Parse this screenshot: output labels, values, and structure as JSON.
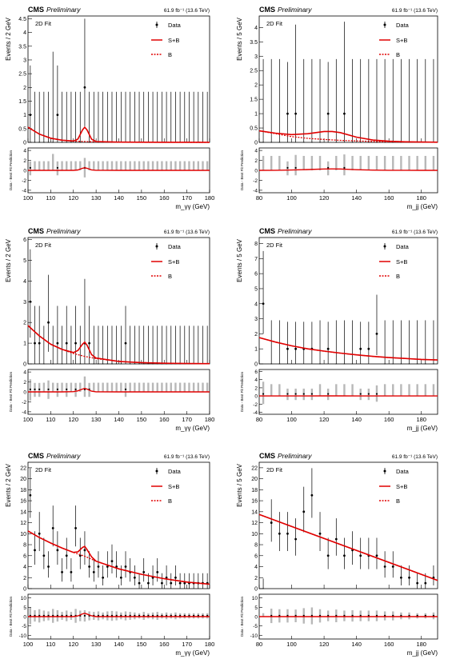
{
  "figure": {
    "lumi_label": "61.9 fb⁻¹ (13.6 TeV)"
  },
  "chart_data": [
    {
      "type": "scatter",
      "header": {
        "experiment": "CMS",
        "status": "Preliminary"
      },
      "fit_label": "2D Fit",
      "legend": [
        "Data",
        "S+B",
        "B"
      ],
      "legend_position": "top-right",
      "xlabel": "m_γγ (GeV)",
      "ylabel": "Events / 2 GeV",
      "ratio_ylabel": "Data - Best Fit Prediction",
      "xlim": [
        100,
        180
      ],
      "ylim": [
        0,
        4.6
      ],
      "yticks": [
        0,
        0.5,
        1,
        1.5,
        2,
        2.5,
        3,
        3.5,
        4,
        4.5
      ],
      "xticks": [
        100,
        110,
        120,
        130,
        140,
        150,
        160,
        170,
        180
      ],
      "ratio_ylim": [
        -4.5,
        4.5
      ],
      "ratio_yticks": [
        -4,
        -2,
        0,
        2,
        4
      ],
      "data_points": [
        {
          "x": 101,
          "y": 1
        },
        {
          "x": 113,
          "y": 1
        },
        {
          "x": 125,
          "y": 2
        }
      ],
      "empty_bin_upper_error": 1.84,
      "extra_error_bars": [
        {
          "x": 111,
          "hi": 3.3
        },
        {
          "x": 125,
          "hi": 4.5
        }
      ],
      "sb_curve": {
        "x": [
          100,
          105,
          110,
          115,
          120,
          122,
          124,
          125,
          126,
          128,
          130,
          140,
          150,
          160,
          170,
          180
        ],
        "y": [
          0.55,
          0.3,
          0.15,
          0.08,
          0.05,
          0.12,
          0.45,
          0.55,
          0.45,
          0.12,
          0.03,
          0.01,
          0.005,
          0.003,
          0.002,
          0.001
        ]
      },
      "b_curve": {
        "x": [
          100,
          105,
          110,
          115,
          120,
          125,
          130,
          140,
          150,
          160,
          170,
          180
        ],
        "y": [
          0.55,
          0.3,
          0.15,
          0.08,
          0.05,
          0.03,
          0.02,
          0.01,
          0.005,
          0.003,
          0.002,
          0.001
        ]
      }
    },
    {
      "type": "scatter",
      "header": {
        "experiment": "CMS",
        "status": "Preliminary"
      },
      "fit_label": "2D Fit",
      "legend": [
        "Data",
        "S+B",
        "B"
      ],
      "legend_position": "top-right",
      "xlabel": "m_jj (GeV)",
      "ylabel": "Events / 5 GeV",
      "ratio_ylabel": "Data - Best Fit Prediction",
      "xlim": [
        80,
        190
      ],
      "ylim": [
        0,
        4.4
      ],
      "yticks": [
        0,
        0.5,
        1,
        1.5,
        2,
        2.5,
        3,
        3.5,
        4
      ],
      "xticks": [
        80,
        100,
        120,
        140,
        160,
        180
      ],
      "ratio_ylim": [
        -4.5,
        4.5
      ],
      "ratio_yticks": [
        -4,
        -2,
        0,
        2,
        4
      ],
      "data_points": [
        {
          "x": 97.5,
          "y": 1
        },
        {
          "x": 102.5,
          "y": 1
        },
        {
          "x": 122.5,
          "y": 1
        },
        {
          "x": 132.5,
          "y": 1
        }
      ],
      "empty_bin_upper_error": 2.9,
      "extra_error_bars": [
        {
          "x": 102.5,
          "hi": 4.1
        },
        {
          "x": 132.5,
          "hi": 4.2
        }
      ],
      "sb_curve": {
        "x": [
          80,
          90,
          100,
          110,
          120,
          125,
          130,
          140,
          150,
          160,
          170,
          180,
          190
        ],
        "y": [
          0.4,
          0.32,
          0.27,
          0.3,
          0.38,
          0.38,
          0.34,
          0.18,
          0.08,
          0.04,
          0.02,
          0.01,
          0.005
        ]
      },
      "b_curve": {
        "x": [
          80,
          90,
          100,
          110,
          120,
          130,
          140,
          150,
          160,
          170,
          180,
          190
        ],
        "y": [
          0.4,
          0.3,
          0.2,
          0.14,
          0.1,
          0.07,
          0.05,
          0.03,
          0.02,
          0.01,
          0.008,
          0.005
        ]
      }
    },
    {
      "type": "scatter",
      "header": {
        "experiment": "CMS",
        "status": "Preliminary"
      },
      "fit_label": "2D Fit",
      "legend": [
        "Data",
        "S+B",
        "B"
      ],
      "legend_position": "top-right",
      "xlabel": "m_γγ (GeV)",
      "ylabel": "Events / 2 GeV",
      "ratio_ylabel": "Data - Best Fit Prediction",
      "xlim": [
        100,
        180
      ],
      "ylim": [
        0,
        6.1
      ],
      "yticks": [
        0,
        1,
        2,
        3,
        4,
        5,
        6
      ],
      "xticks": [
        100,
        110,
        120,
        130,
        140,
        150,
        160,
        170,
        180
      ],
      "ratio_ylim": [
        -4.5,
        4.5
      ],
      "ratio_yticks": [
        -4,
        -2,
        0,
        2,
        4
      ],
      "data_points": [
        {
          "x": 101,
          "y": 3
        },
        {
          "x": 103,
          "y": 1
        },
        {
          "x": 105,
          "y": 1
        },
        {
          "x": 109,
          "y": 2
        },
        {
          "x": 113,
          "y": 1
        },
        {
          "x": 117,
          "y": 1
        },
        {
          "x": 121,
          "y": 1
        },
        {
          "x": 125,
          "y": 1
        },
        {
          "x": 127,
          "y": 1
        },
        {
          "x": 143,
          "y": 1
        }
      ],
      "empty_bin_upper_error": 1.84,
      "extra_error_bars": [
        {
          "x": 101,
          "hi": 5.5
        },
        {
          "x": 109,
          "hi": 4.3
        },
        {
          "x": 125,
          "hi": 4.1
        }
      ],
      "sb_curve": {
        "x": [
          100,
          105,
          110,
          115,
          120,
          122,
          124,
          125,
          126,
          128,
          130,
          140,
          150,
          160,
          170,
          180
        ],
        "y": [
          1.85,
          1.35,
          0.95,
          0.7,
          0.55,
          0.65,
          0.95,
          1.05,
          0.9,
          0.45,
          0.28,
          0.12,
          0.06,
          0.03,
          0.02,
          0.01
        ]
      },
      "b_curve": {
        "x": [
          100,
          105,
          110,
          115,
          120,
          125,
          130,
          140,
          150,
          160,
          170,
          180
        ],
        "y": [
          1.85,
          1.35,
          0.95,
          0.7,
          0.5,
          0.36,
          0.26,
          0.12,
          0.06,
          0.03,
          0.02,
          0.01
        ]
      }
    },
    {
      "type": "scatter",
      "header": {
        "experiment": "CMS",
        "status": "Preliminary"
      },
      "fit_label": "2D Fit",
      "legend": [
        "Data",
        "S+B",
        "B"
      ],
      "legend_position": "top-right",
      "xlabel": "m_jj (GeV)",
      "ylabel": "Events / 5 GeV",
      "ratio_ylabel": "Data - Best Fit Prediction",
      "xlim": [
        80,
        190
      ],
      "ylim": [
        0,
        8.4
      ],
      "yticks": [
        0,
        1,
        2,
        3,
        4,
        5,
        6,
        7,
        8
      ],
      "xticks": [
        80,
        100,
        120,
        140,
        160,
        180
      ],
      "ratio_ylim": [
        -4.5,
        6.5
      ],
      "ratio_yticks": [
        -4,
        -2,
        0,
        2,
        4,
        6
      ],
      "data_points": [
        {
          "x": 82.5,
          "y": 4
        },
        {
          "x": 97.5,
          "y": 1
        },
        {
          "x": 102.5,
          "y": 1
        },
        {
          "x": 107.5,
          "y": 1
        },
        {
          "x": 112.5,
          "y": 1
        },
        {
          "x": 122.5,
          "y": 1
        },
        {
          "x": 142.5,
          "y": 1
        },
        {
          "x": 147.5,
          "y": 1
        },
        {
          "x": 152.5,
          "y": 2
        }
      ],
      "empty_bin_upper_error": 2.9,
      "extra_error_bars": [
        {
          "x": 82.5,
          "hi": 7.5
        },
        {
          "x": 152.5,
          "hi": 4.6
        }
      ],
      "sb_curve": {
        "x": [
          80,
          90,
          100,
          110,
          120,
          130,
          140,
          150,
          160,
          170,
          180,
          190
        ],
        "y": [
          1.75,
          1.45,
          1.2,
          1.0,
          0.85,
          0.72,
          0.6,
          0.5,
          0.42,
          0.36,
          0.3,
          0.26
        ]
      },
      "b_curve": {
        "x": [
          80,
          90,
          100,
          110,
          120,
          130,
          140,
          150,
          160,
          170,
          180,
          190
        ],
        "y": [
          1.75,
          1.45,
          1.2,
          1.0,
          0.84,
          0.71,
          0.6,
          0.5,
          0.42,
          0.36,
          0.3,
          0.26
        ]
      }
    },
    {
      "type": "scatter",
      "header": {
        "experiment": "CMS",
        "status": "Preliminary"
      },
      "fit_label": "2D Fit",
      "legend": [
        "Data",
        "S+B",
        "B"
      ],
      "legend_position": "top-right",
      "xlabel": "m_γγ (GeV)",
      "ylabel": "Events / 2 GeV",
      "ratio_ylabel": "Data - Best Fit Prediction",
      "xlim": [
        100,
        180
      ],
      "ylim": [
        0,
        23
      ],
      "yticks": [
        0,
        2,
        4,
        6,
        8,
        10,
        12,
        14,
        16,
        18,
        20,
        22
      ],
      "xticks": [
        100,
        110,
        120,
        130,
        140,
        150,
        160,
        170,
        180
      ],
      "ratio_ylim": [
        -12,
        12
      ],
      "ratio_yticks": [
        -10,
        -5,
        0,
        5,
        10
      ],
      "data_points": [
        {
          "x": 101,
          "y": 17
        },
        {
          "x": 103,
          "y": 7
        },
        {
          "x": 105,
          "y": 10
        },
        {
          "x": 107,
          "y": 6
        },
        {
          "x": 109,
          "y": 4
        },
        {
          "x": 111,
          "y": 11
        },
        {
          "x": 113,
          "y": 7
        },
        {
          "x": 115,
          "y": 3
        },
        {
          "x": 117,
          "y": 6
        },
        {
          "x": 119,
          "y": 3
        },
        {
          "x": 121,
          "y": 11
        },
        {
          "x": 123,
          "y": 6
        },
        {
          "x": 125,
          "y": 7
        },
        {
          "x": 127,
          "y": 4
        },
        {
          "x": 129,
          "y": 3
        },
        {
          "x": 131,
          "y": 4
        },
        {
          "x": 133,
          "y": 2
        },
        {
          "x": 135,
          "y": 4
        },
        {
          "x": 137,
          "y": 5
        },
        {
          "x": 139,
          "y": 4
        },
        {
          "x": 141,
          "y": 2
        },
        {
          "x": 143,
          "y": 4
        },
        {
          "x": 145,
          "y": 3
        },
        {
          "x": 147,
          "y": 2
        },
        {
          "x": 149,
          "y": 1
        },
        {
          "x": 151,
          "y": 3
        },
        {
          "x": 153,
          "y": 1
        },
        {
          "x": 155,
          "y": 2
        },
        {
          "x": 157,
          "y": 3
        },
        {
          "x": 159,
          "y": 1
        },
        {
          "x": 161,
          "y": 2
        },
        {
          "x": 163,
          "y": 1
        },
        {
          "x": 165,
          "y": 2
        },
        {
          "x": 167,
          "y": 1
        },
        {
          "x": 169,
          "y": 1
        },
        {
          "x": 171,
          "y": 1
        },
        {
          "x": 173,
          "y": 1
        },
        {
          "x": 175,
          "y": 1
        },
        {
          "x": 177,
          "y": 1
        },
        {
          "x": 179,
          "y": 1
        }
      ],
      "empty_bin_upper_error": 1.84,
      "extra_error_bars": [],
      "sb_curve": {
        "x": [
          100,
          105,
          110,
          115,
          120,
          122,
          124,
          125,
          126,
          128,
          130,
          140,
          150,
          160,
          170,
          180
        ],
        "y": [
          10.5,
          9.3,
          8.3,
          7.4,
          6.6,
          6.7,
          7.5,
          7.7,
          7.1,
          5.8,
          5.0,
          3.6,
          2.6,
          1.8,
          1.2,
          0.8
        ]
      },
      "b_curve": {
        "x": [
          100,
          105,
          110,
          115,
          120,
          125,
          130,
          140,
          150,
          160,
          170,
          180
        ],
        "y": [
          10.5,
          9.3,
          8.3,
          7.4,
          6.6,
          5.9,
          5.0,
          3.6,
          2.6,
          1.8,
          1.2,
          0.8
        ]
      }
    },
    {
      "type": "scatter",
      "header": {
        "experiment": "CMS",
        "status": "Preliminary"
      },
      "fit_label": "2D Fit",
      "legend": [
        "Data",
        "S+B",
        "B"
      ],
      "legend_position": "top-right",
      "xlabel": "m_jj (GeV)",
      "ylabel": "Events / 5 GeV",
      "ratio_ylabel": "Data - Best Fit Prediction",
      "xlim": [
        80,
        190
      ],
      "ylim": [
        0,
        23
      ],
      "yticks": [
        0,
        2,
        4,
        6,
        8,
        10,
        12,
        14,
        16,
        18,
        20,
        22
      ],
      "xticks": [
        80,
        100,
        120,
        140,
        160,
        180
      ],
      "ratio_ylim": [
        -12,
        12
      ],
      "ratio_yticks": [
        -10,
        -5,
        0,
        5,
        10
      ],
      "data_points": [
        {
          "x": 87.5,
          "y": 12
        },
        {
          "x": 92.5,
          "y": 10
        },
        {
          "x": 97.5,
          "y": 10
        },
        {
          "x": 102.5,
          "y": 9
        },
        {
          "x": 107.5,
          "y": 14
        },
        {
          "x": 112.5,
          "y": 17
        },
        {
          "x": 117.5,
          "y": 10
        },
        {
          "x": 122.5,
          "y": 6
        },
        {
          "x": 127.5,
          "y": 9
        },
        {
          "x": 132.5,
          "y": 6
        },
        {
          "x": 137.5,
          "y": 7
        },
        {
          "x": 142.5,
          "y": 6
        },
        {
          "x": 147.5,
          "y": 6
        },
        {
          "x": 152.5,
          "y": 6
        },
        {
          "x": 157.5,
          "y": 4
        },
        {
          "x": 162.5,
          "y": 4
        },
        {
          "x": 167.5,
          "y": 2
        },
        {
          "x": 172.5,
          "y": 2
        },
        {
          "x": 177.5,
          "y": 1
        },
        {
          "x": 182.5,
          "y": 1
        },
        {
          "x": 187.5,
          "y": 2
        }
      ],
      "empty_bin_upper_error": 1.84,
      "extra_error_bars": [],
      "sb_curve": {
        "x": [
          80,
          190
        ],
        "y": [
          13.5,
          1.5
        ]
      },
      "b_curve": {
        "x": [
          80,
          190
        ],
        "y": [
          13.5,
          1.5
        ]
      }
    }
  ]
}
